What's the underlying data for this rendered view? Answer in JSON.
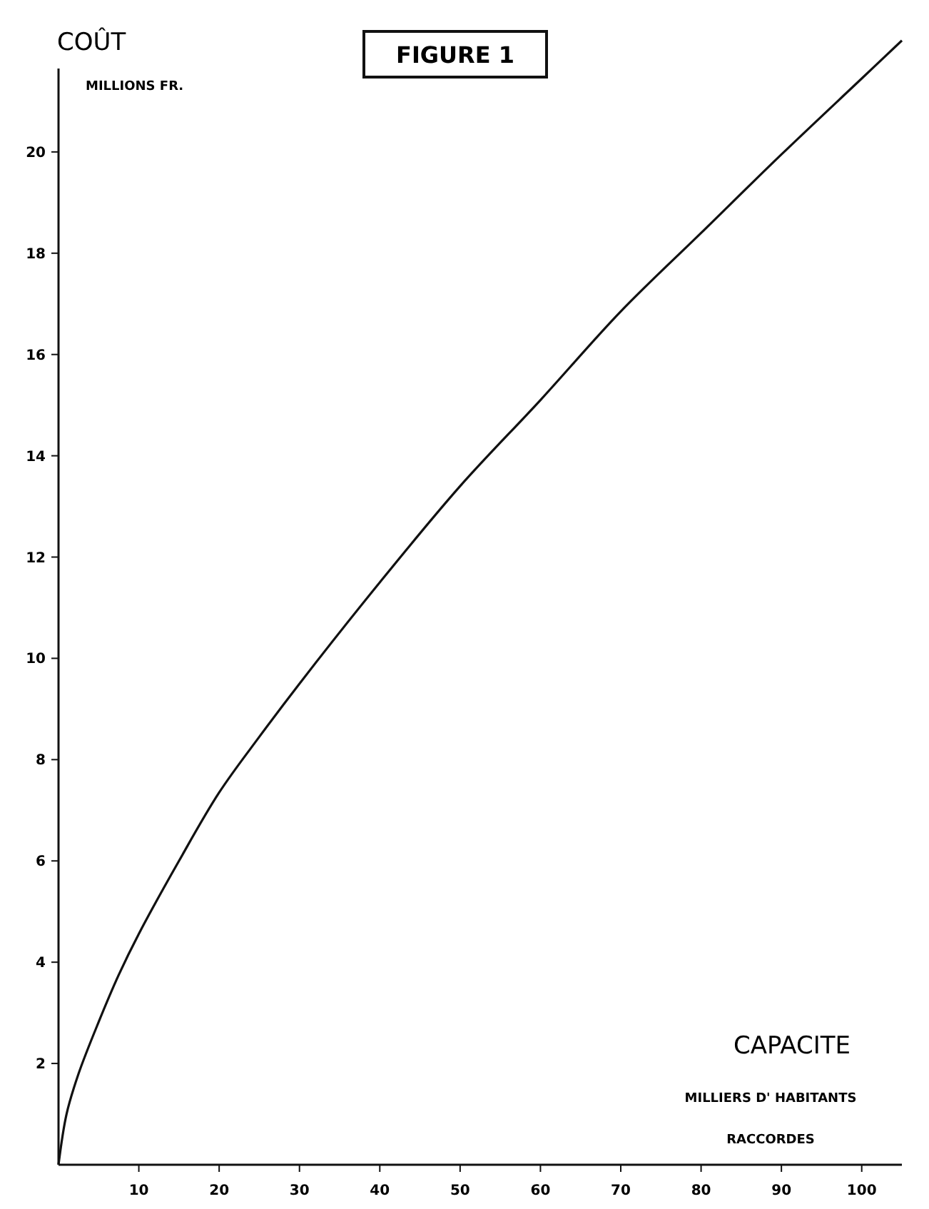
{
  "chart_data": {
    "type": "line",
    "title": "FIGURE 1",
    "ylabel": "COÛT",
    "xlabel": "CAPACITE",
    "annotations": [
      "MILLIONS FR.",
      "MILLIERS D' HABITANTS",
      "RACCORDES"
    ],
    "x": [
      0,
      1,
      2.5,
      5,
      7.5,
      10,
      15,
      20,
      25,
      30,
      40,
      50,
      60,
      70,
      80,
      90,
      100,
      105
    ],
    "series": [
      {
        "color": "#111111",
        "values": [
          0,
          1.0,
          1.8,
          2.82,
          3.75,
          4.56,
          6.0,
          7.35,
          8.45,
          9.5,
          11.5,
          13.4,
          15.1,
          16.85,
          18.4,
          19.95,
          21.45,
          22.2
        ]
      }
    ],
    "xlim": [
      0,
      105
    ],
    "ylim": [
      0,
      23
    ],
    "xticks": [
      10,
      20,
      30,
      40,
      50,
      60,
      70,
      80,
      90,
      100
    ],
    "yticks": [
      2,
      4,
      6,
      8,
      10,
      12,
      14,
      16,
      18,
      20
    ],
    "grid": false,
    "line_style": "solid"
  }
}
